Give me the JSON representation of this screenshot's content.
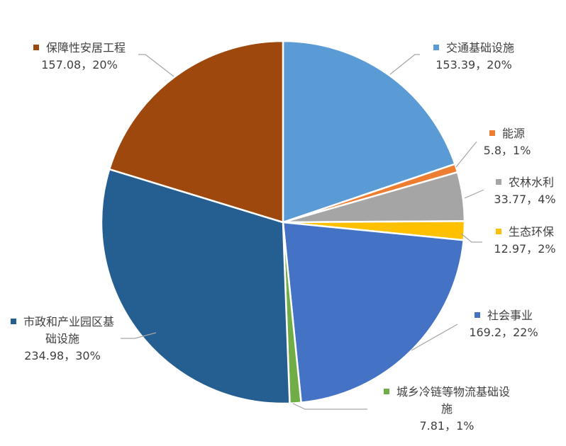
{
  "chart_data": {
    "type": "pie",
    "categories": [
      "交通基础设施",
      "能源",
      "农林水利",
      "生态环保",
      "社会事业",
      "城乡冷链等物流基础设施",
      "市政和产业园区基础设施",
      "保障性安居工程"
    ],
    "values": [
      153.39,
      5.8,
      33.77,
      12.97,
      169.2,
      7.81,
      234.98,
      157.08
    ],
    "value_labels": [
      "153.39，20%",
      "5.8，1%",
      "33.77，4%",
      "12.97，2%",
      "169.2，22%",
      "7.81，1%",
      "234.98，30%",
      "157.08，20%"
    ],
    "colors": [
      "#5b9bd5",
      "#ed7d31",
      "#a5a5a5",
      "#ffc000",
      "#4472c4",
      "#70ad47",
      "#255e91",
      "#9e480e"
    ]
  }
}
